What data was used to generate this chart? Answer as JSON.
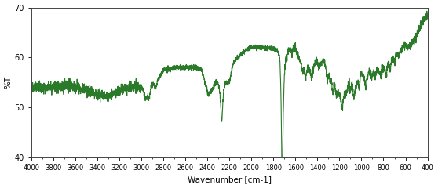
{
  "title": "",
  "xlabel": "Wavenumber [cm-1]",
  "ylabel": "%T",
  "xlim": [
    4000,
    400
  ],
  "ylim": [
    40,
    70
  ],
  "yticks": [
    40,
    50,
    60,
    70
  ],
  "xticks": [
    4000,
    3800,
    3600,
    3400,
    3200,
    3000,
    2800,
    2600,
    2400,
    2200,
    2000,
    1800,
    1600,
    1400,
    1200,
    1000,
    800,
    600,
    400
  ],
  "line_color": "#2a7a2a",
  "bg_color": "#ffffff",
  "linewidth": 0.8
}
